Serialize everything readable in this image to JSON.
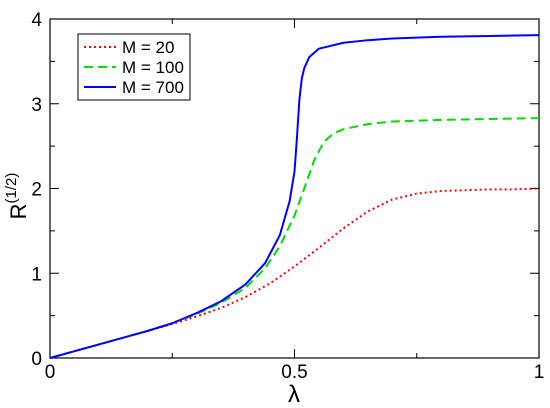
{
  "chart_data": {
    "type": "line",
    "title": "",
    "xlabel": "λ",
    "ylabel": "R",
    "ylabel_superscript": "(1/2)",
    "xlim": [
      0,
      1
    ],
    "ylim": [
      0,
      4
    ],
    "x_ticks": [
      0,
      0.5,
      1
    ],
    "x_tick_labels": [
      "0",
      "0.5",
      "1"
    ],
    "y_ticks": [
      0,
      1,
      2,
      3,
      4
    ],
    "y_tick_labels": [
      "0",
      "1",
      "2",
      "3",
      "4"
    ],
    "grid": false,
    "legend_position": "top-left",
    "series": [
      {
        "name": "M = 20",
        "color": "#ff0000",
        "dash": "dotted",
        "x": [
          0,
          0.05,
          0.1,
          0.15,
          0.2,
          0.25,
          0.3,
          0.35,
          0.4,
          0.45,
          0.5,
          0.55,
          0.6,
          0.65,
          0.7,
          0.75,
          0.8,
          0.85,
          0.9,
          0.95,
          1.0
        ],
        "y": [
          0,
          0.08,
          0.16,
          0.24,
          0.32,
          0.4,
          0.49,
          0.59,
          0.72,
          0.88,
          1.08,
          1.3,
          1.53,
          1.73,
          1.87,
          1.94,
          1.97,
          1.98,
          1.99,
          1.99,
          2.0
        ]
      },
      {
        "name": "M = 100",
        "color": "#00dd00",
        "dash": "dashed",
        "x": [
          0,
          0.05,
          0.1,
          0.15,
          0.2,
          0.25,
          0.3,
          0.35,
          0.4,
          0.44,
          0.47,
          0.5,
          0.52,
          0.54,
          0.56,
          0.58,
          0.6,
          0.65,
          0.7,
          0.8,
          0.9,
          1.0
        ],
        "y": [
          0,
          0.08,
          0.16,
          0.24,
          0.32,
          0.41,
          0.52,
          0.65,
          0.83,
          1.06,
          1.32,
          1.68,
          2.0,
          2.33,
          2.55,
          2.65,
          2.7,
          2.76,
          2.79,
          2.81,
          2.82,
          2.83
        ]
      },
      {
        "name": "M = 700",
        "color": "#0000ff",
        "dash": "solid",
        "x": [
          0,
          0.05,
          0.1,
          0.15,
          0.2,
          0.25,
          0.3,
          0.35,
          0.4,
          0.44,
          0.47,
          0.49,
          0.5,
          0.505,
          0.51,
          0.515,
          0.52,
          0.53,
          0.55,
          0.6,
          0.65,
          0.7,
          0.8,
          0.9,
          1.0
        ],
        "y": [
          0,
          0.08,
          0.16,
          0.24,
          0.32,
          0.41,
          0.53,
          0.67,
          0.87,
          1.12,
          1.45,
          1.85,
          2.2,
          2.6,
          3.05,
          3.3,
          3.42,
          3.55,
          3.65,
          3.72,
          3.75,
          3.77,
          3.79,
          3.8,
          3.81
        ]
      }
    ]
  }
}
